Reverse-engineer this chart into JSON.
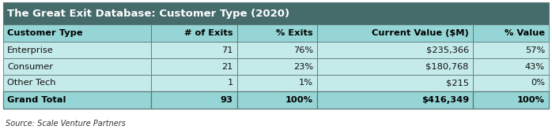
{
  "title": "The Great Exit Database: Customer Type (2020)",
  "columns": [
    "Customer Type",
    "# of Exits",
    "% Exits",
    "Current Value ($M)",
    "% Value"
  ],
  "rows": [
    [
      "Enterprise",
      "71",
      "76%",
      "$235,366",
      "57%"
    ],
    [
      "Consumer",
      "21",
      "23%",
      "$180,768",
      "43%"
    ],
    [
      "Other Tech",
      "1",
      "1%",
      "$215",
      "0%"
    ]
  ],
  "total_row": [
    "Grand Total",
    "93",
    "100%",
    "$416,349",
    "100%"
  ],
  "source": "Source: Scale Venture Partners",
  "header_bg": "#456b6b",
  "header_text": "#ffffff",
  "col_header_bg": "#96d5d5",
  "col_header_text": "#000000",
  "row_bg": "#c5eaea",
  "total_bg": "#96d5d5",
  "total_text": "#000000",
  "border_color": "#5a7a7a",
  "fig_w": 6.98,
  "fig_h": 1.74,
  "dpi": 100
}
